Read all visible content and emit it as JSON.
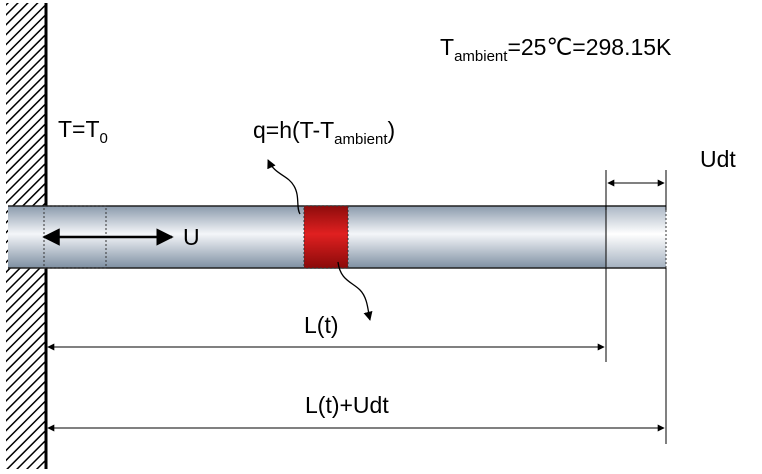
{
  "labels": {
    "ambient": {
      "prefix": "T",
      "subscript": "ambient",
      "suffix": "=25℃=298.15K"
    },
    "boundary": {
      "prefix": "T=T",
      "subscript": "0"
    },
    "heat_flux": {
      "prefix": "q=h(T-T",
      "subscript": "ambient",
      "suffix": ")"
    },
    "velocity": "U",
    "increment": "Udt",
    "length": "L(t)",
    "length_plus": "L(t)+Udt"
  },
  "colors": {
    "rod_dark": "#8a9aac",
    "rod_light": "#ffffff",
    "heated_section": "#d01a1a",
    "wall_hatch": "#000000"
  }
}
